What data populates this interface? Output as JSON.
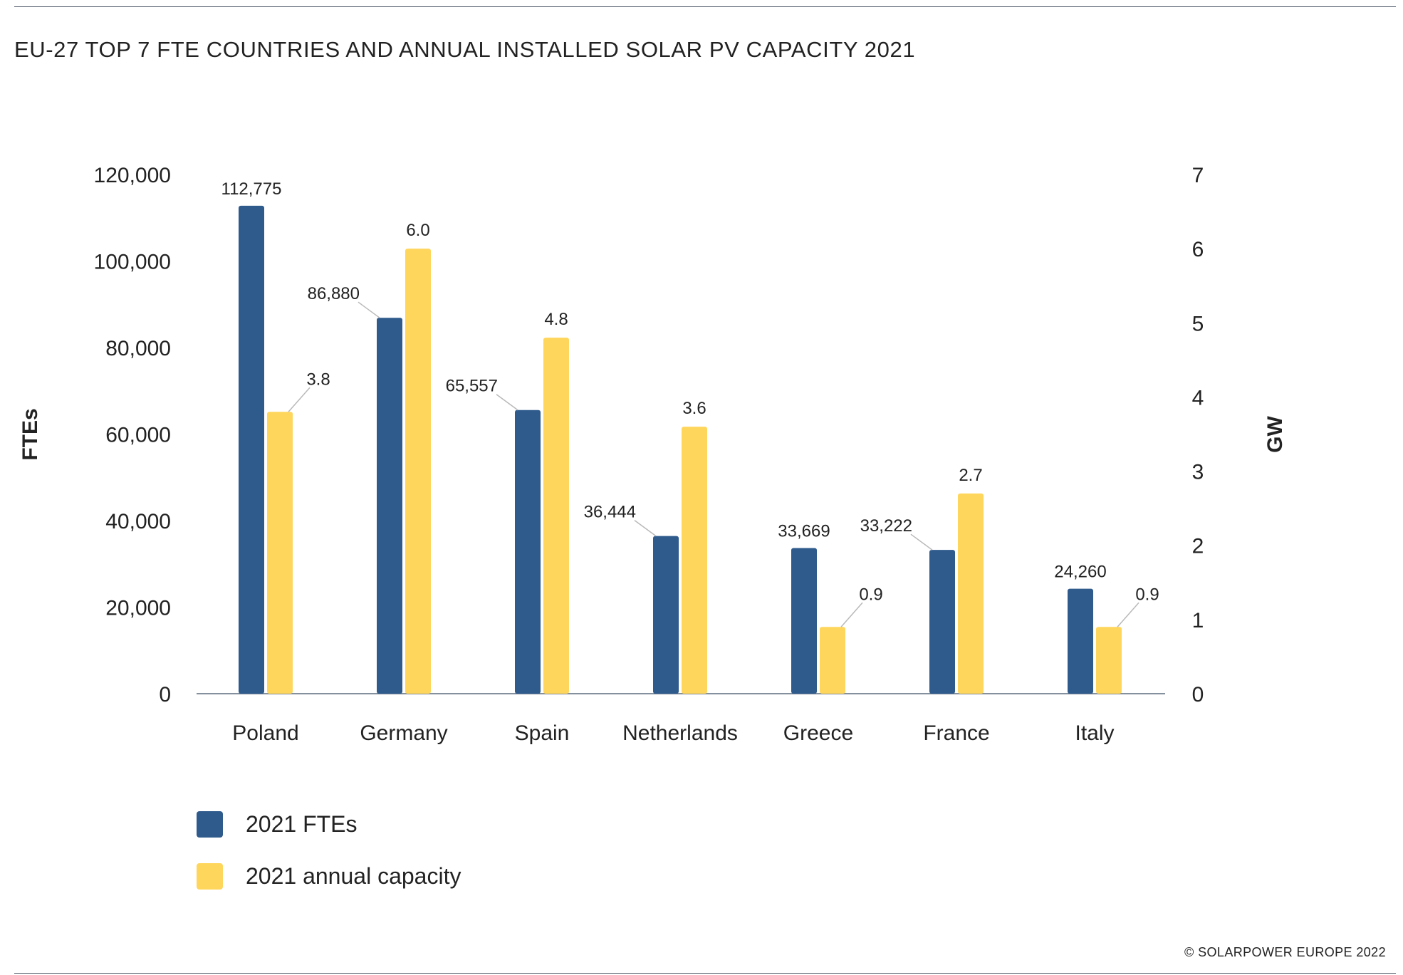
{
  "title": "EU-27 TOP 7 FTE COUNTRIES AND ANNUAL INSTALLED SOLAR PV CAPACITY 2021",
  "credit": "© SOLARPOWER EUROPE 2022",
  "colors": {
    "fte": "#2e5a8c",
    "capacity": "#ffd65c",
    "axis": "#5b6b7e",
    "text": "#222222",
    "leader": "#b9b9b9"
  },
  "chart_data": {
    "type": "bar",
    "categories": [
      "Poland",
      "Germany",
      "Spain",
      "Netherlands",
      "Greece",
      "France",
      "Italy"
    ],
    "series": [
      {
        "name": "2021 FTEs",
        "axis": "left",
        "values": [
          112775,
          86880,
          65557,
          36444,
          33669,
          33222,
          24260
        ],
        "labels": [
          "112,775",
          "86,880",
          "65,557",
          "36,444",
          "33,669",
          "33,222",
          "24,260"
        ]
      },
      {
        "name": "2021 annual capacity",
        "axis": "right",
        "values": [
          3.8,
          6.0,
          4.8,
          3.6,
          0.9,
          2.7,
          0.9
        ],
        "labels": [
          "3.8",
          "6.0",
          "4.8",
          "3.6",
          "0.9",
          "2.7",
          "0.9"
        ]
      }
    ],
    "ylabel": "FTEs",
    "y2label": "GW",
    "ylim": [
      0,
      120000
    ],
    "y2lim": [
      0,
      7
    ],
    "yticks": [
      "0",
      "20,000",
      "40,000",
      "60,000",
      "80,000",
      "100,000",
      "120,000"
    ],
    "y2ticks": [
      "0",
      "1",
      "2",
      "3",
      "4",
      "5",
      "6",
      "7"
    ],
    "grid": false,
    "legend_position": "bottom-left"
  }
}
